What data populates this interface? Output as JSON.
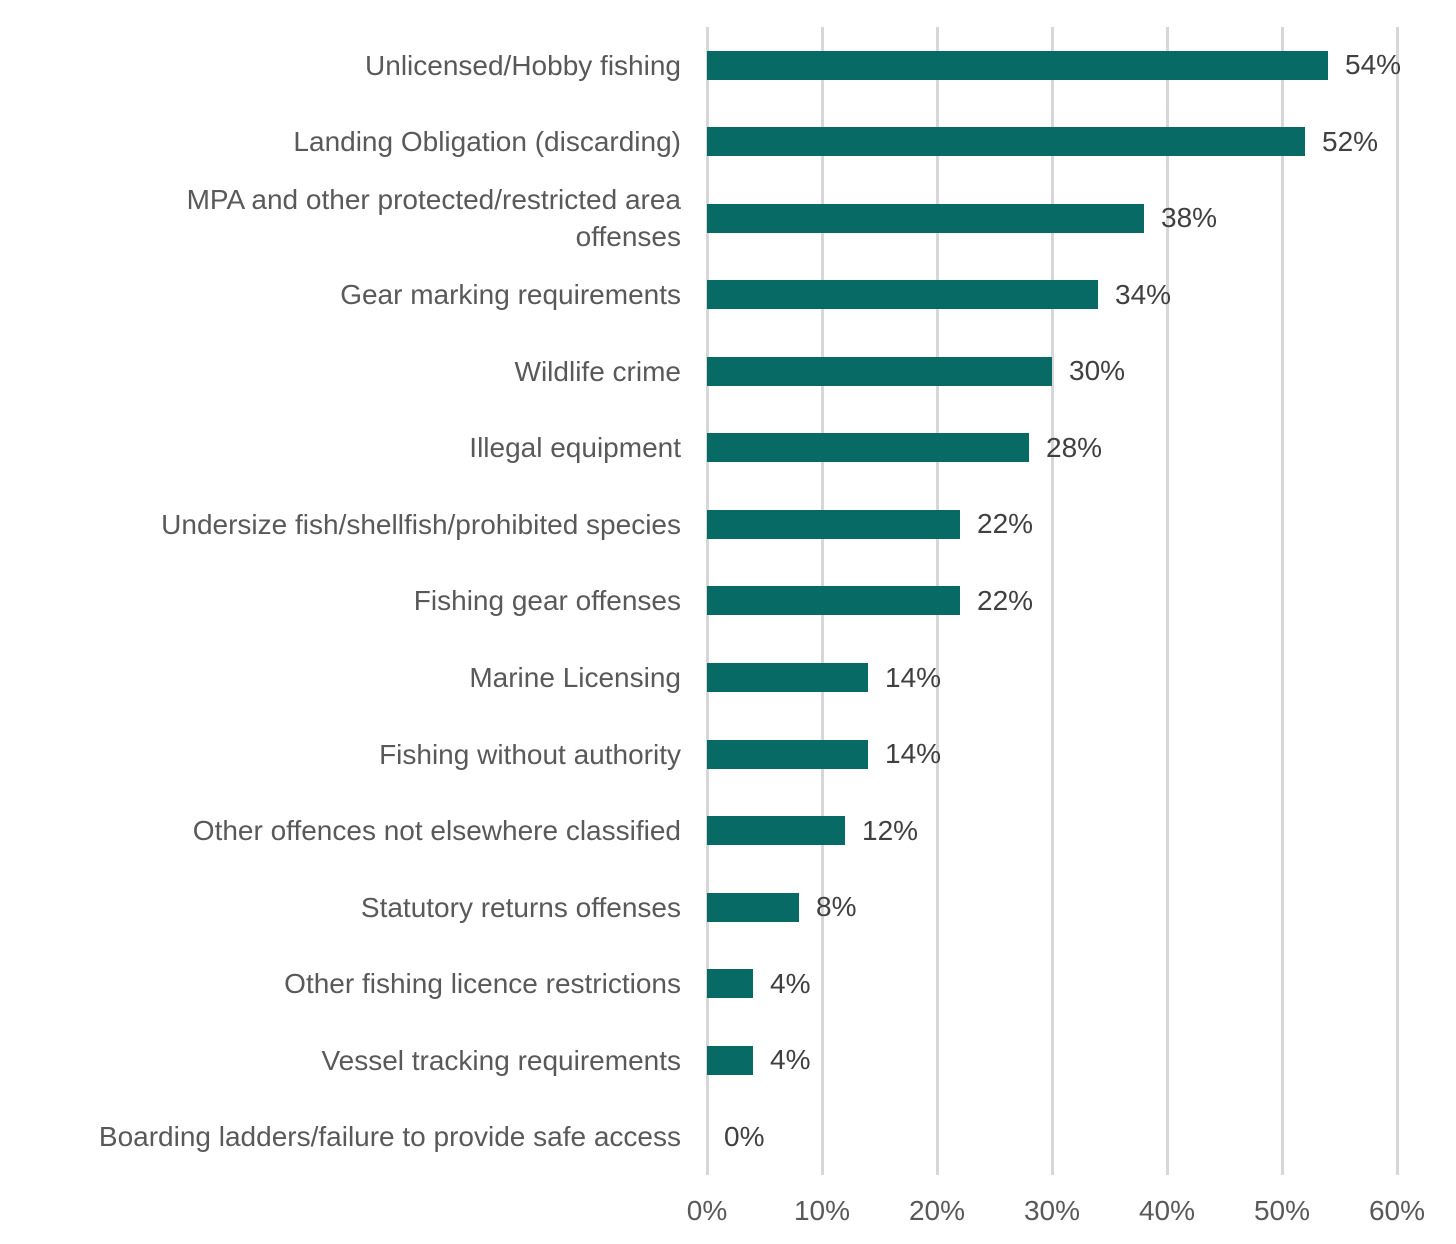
{
  "chart_data": {
    "type": "bar",
    "orientation": "horizontal",
    "title": "",
    "xlabel": "",
    "ylabel": "",
    "xlim": [
      0,
      60
    ],
    "grid": "vertical",
    "bar_color": "#076a64",
    "gridline_color": "#d7d7d7",
    "label_color": "#595959",
    "value_label_color": "#404040",
    "categories": [
      "Unlicensed/Hobby fishing",
      "Landing Obligation (discarding)",
      "MPA and other protected/restricted area\noffenses",
      "Gear marking requirements",
      "Wildlife crime",
      "Illegal equipment",
      "Undersize fish/shellfish/prohibited species",
      "Fishing gear offenses",
      "Marine Licensing",
      "Fishing without authority",
      "Other offences not elsewhere classified",
      "Statutory returns offenses",
      "Other fishing licence restrictions",
      "Vessel tracking requirements",
      "Boarding ladders/failure to provide safe access"
    ],
    "values": [
      54,
      52,
      38,
      34,
      30,
      28,
      22,
      22,
      14,
      14,
      12,
      8,
      4,
      4,
      0
    ],
    "value_labels": [
      "54%",
      "52%",
      "38%",
      "34%",
      "30%",
      "28%",
      "22%",
      "22%",
      "14%",
      "14%",
      "12%",
      "8%",
      "4%",
      "4%",
      "0%"
    ],
    "x_ticks": [
      "0%",
      "10%",
      "20%",
      "30%",
      "40%",
      "50%",
      "60%"
    ],
    "x_tick_values": [
      0,
      10,
      20,
      30,
      40,
      50,
      60
    ]
  }
}
